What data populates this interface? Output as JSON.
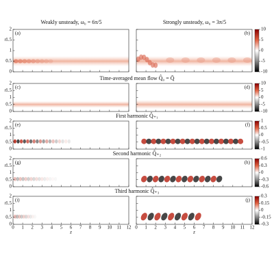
{
  "columns": [
    "Weakly unsteady, ω₀ = 6π/5",
    "Strongly unsteady, ω₀ = 3π/5"
  ],
  "axes": {
    "xlim": [
      0,
      12
    ],
    "xticks": [
      0,
      1,
      2,
      3,
      4,
      5,
      6,
      7,
      8,
      9,
      10,
      11,
      12
    ],
    "ylim": [
      0,
      2
    ],
    "yticks": [
      0,
      0.5,
      1,
      1.5,
      2
    ],
    "xlabel": "z",
    "ylabel": "r"
  },
  "rows": [
    {
      "panels": [
        "(a)",
        "(b)"
      ],
      "colorbar": {
        "lim": [
          -10,
          10
        ],
        "ticks": [
          10,
          5,
          0,
          -5,
          -10
        ]
      }
    },
    {
      "title": "Time-averaged mean flow Q̂₀ = Q̄",
      "panels": [
        "(c)",
        "(d)"
      ],
      "colorbar": {
        "lim": [
          -10,
          10
        ],
        "ticks": [
          10,
          5,
          0,
          -5,
          -10
        ]
      }
    },
    {
      "title": "First harmonic Q̂₊₁",
      "panels": [
        "(e)",
        "(f)"
      ],
      "colorbar": {
        "lim": [
          -1,
          1
        ],
        "ticks": [
          1,
          0.5,
          0,
          -0.5,
          -1
        ]
      }
    },
    {
      "title": "Second harmonic Q̂₊₂",
      "panels": [
        "(g)",
        "(h)"
      ],
      "colorbar": {
        "lim": [
          -0.6,
          0.6
        ],
        "ticks": [
          0.6,
          0.3,
          0,
          -0.3,
          -0.6
        ]
      }
    },
    {
      "title": "Third harmonic Q̂₊₃",
      "panels": [
        "(i)",
        "(j)"
      ],
      "colorbar": {
        "lim": [
          -0.3,
          0.3
        ],
        "ticks": [
          0.3,
          0.15,
          0,
          -0.15,
          -0.3
        ]
      }
    }
  ]
}
